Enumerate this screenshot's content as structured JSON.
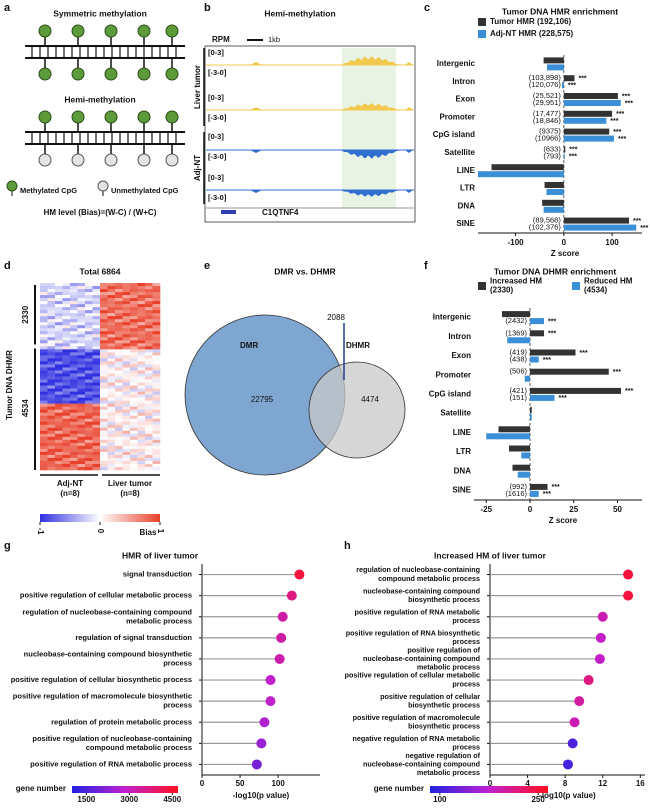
{
  "panel_labels": [
    "a",
    "b",
    "c",
    "d",
    "e",
    "f",
    "g",
    "h"
  ],
  "a": {
    "title_top": "Symmetric methylation",
    "title_bottom": "Hemi-methylation",
    "legend": [
      "Methylated CpG",
      "Unmethylated CpG"
    ],
    "formula": "HM level (Bias)=(W-C) / (W+C)"
  },
  "b": {
    "title": "Hemi-methylation",
    "unit": "RPM",
    "scale": "1kb",
    "groups": [
      "Liver tumor",
      "Adj-NT"
    ],
    "track_ranges": [
      "[0-3]",
      "[-3-0]",
      "[0-3]",
      "[-3-0]",
      "[0-3]",
      "[-3-0]",
      "[0-3]",
      "[-3-0]"
    ],
    "gene": "C1QTNF4"
  },
  "d": {
    "title": "Total 6864",
    "clusters": [
      2330,
      4534
    ],
    "ylabel": "Tumor DNA DHMR",
    "groups": [
      [
        "Adj-NT",
        "(n=8)"
      ],
      [
        "Liver tumor",
        "(n=8)"
      ]
    ],
    "colorbar": {
      "label": "Bias",
      "lim": [
        -1,
        1
      ],
      "ticks": [
        -1,
        0,
        1
      ],
      "colors": [
        "#2f2fe0",
        "#ffffff",
        "#e8402a"
      ]
    }
  },
  "e": {
    "title": "DMR vs. DHMR",
    "sets": [
      "DMR",
      "DHMR"
    ],
    "only_dmr": 22795,
    "overlap": 2088,
    "only_dhmr": 4474
  },
  "chart_data": [
    {
      "type": "bar",
      "orientation": "horizontal",
      "title": "Tumor DNA HMR enrichment",
      "categories": [
        "Intergenic",
        "Intron",
        "Exon",
        "Promoter",
        "CpG island",
        "Satellite",
        "LINE",
        "LTR",
        "DNA",
        "SINE"
      ],
      "series": [
        {
          "name": "Tumor HMR (192,106)",
          "color": "#333333",
          "values": [
            -42,
            22,
            112,
            100,
            94,
            3,
            -150,
            -40,
            -45,
            135
          ],
          "annotations": [
            null,
            "(103,898)",
            "(25,521)",
            "(17,477)",
            "(9375)",
            "(633)",
            null,
            null,
            null,
            "(89,568)"
          ],
          "significance": [
            null,
            "***",
            "***",
            "***",
            "***",
            "***",
            null,
            null,
            null,
            "***"
          ]
        },
        {
          "name": "Adj-NT HMR (228,575)",
          "color": "#3a8fd6",
          "values": [
            -35,
            -4,
            118,
            88,
            104,
            2,
            -178,
            -36,
            -42,
            150
          ],
          "annotations": [
            null,
            "(120,076)",
            "(29,951)",
            "(18,846)",
            "(10966)",
            "(793)",
            null,
            null,
            null,
            "(102,376)"
          ],
          "significance": [
            null,
            "***",
            "***",
            "***",
            "***",
            "***",
            null,
            null,
            null,
            "***"
          ]
        }
      ],
      "xlabel": "Z score",
      "xlim": [
        -178,
        162
      ],
      "xticks": [
        -100,
        0,
        100
      ]
    },
    {
      "type": "bar",
      "orientation": "horizontal",
      "title": "Tumor DNA DHMR enrichment",
      "categories": [
        "Intergenic",
        "Intron",
        "Exon",
        "Promoter",
        "CpG island",
        "Satellite",
        "LINE",
        "LTR",
        "DNA",
        "SINE"
      ],
      "series": [
        {
          "name": "Increased HM (2330)",
          "color": "#333333",
          "values": [
            -16,
            8,
            26,
            45,
            52,
            1,
            -18,
            -12,
            -10,
            10
          ],
          "annotations": [
            null,
            "(1369)",
            "(419)",
            "(506)",
            "(421)",
            null,
            null,
            null,
            null,
            "(992)"
          ],
          "significance": [
            null,
            "***",
            "***",
            "***",
            "***",
            null,
            null,
            null,
            null,
            "***"
          ]
        },
        {
          "name": "Reduced HM (4534)",
          "color": "#3a8fd6",
          "values": [
            8,
            -13,
            5,
            -3,
            14,
            1,
            -25,
            -5,
            -7,
            5
          ],
          "annotations": [
            "(2432)",
            null,
            "(438)",
            null,
            "(151)",
            null,
            null,
            null,
            null,
            "(1616)"
          ],
          "significance": [
            "***",
            null,
            "***",
            null,
            "***",
            null,
            null,
            null,
            null,
            "***"
          ]
        }
      ],
      "xlabel": "Z score",
      "xlim": [
        -32,
        64
      ],
      "xticks": [
        -25,
        0,
        25,
        50
      ]
    },
    {
      "type": "lollipop",
      "title": "HMR of liver tumor",
      "categories": [
        "signal transduction",
        "positive regulation of cellular metabolic process",
        "regulation of nucleobase-containing compound metabolic process",
        "regulation of signal transduction",
        "nucleobase-containing compound biosynthetic process",
        "positive regulation of cellular biosynthetic process",
        "positive regulation of macromolecule biosynthetic process",
        "regulation of protein metabolic process",
        "positive regulation of nucleobase-containing compound metabolic process",
        "positive regulation of RNA metabolic process"
      ],
      "values": [
        128,
        118,
        106,
        104,
        102,
        90,
        90,
        82,
        78,
        72
      ],
      "gene_number": [
        4400,
        3700,
        3300,
        3300,
        3200,
        2900,
        2900,
        2700,
        2400,
        2000
      ],
      "xlabel": "-log10(p value)",
      "xlim": [
        0,
        155
      ],
      "xticks": [
        0,
        50,
        100
      ],
      "colorbar": {
        "label": "gene number",
        "lim": [
          1000,
          4700
        ],
        "ticks": [
          1500,
          3000,
          4500
        ],
        "colors": [
          "#2222e0",
          "#c020d0",
          "#ff1020"
        ]
      }
    },
    {
      "type": "lollipop",
      "title": "Increased HM of liver tumor",
      "categories": [
        "regulation of nucleobase-containing compound metabolic process",
        "nucleobase-containing compound biosynthetic process",
        "positive regulation of RNA metabolic process",
        "positive regulation of RNA biosynthetic process",
        "positive regulation of nucleobase-containing compound metabolic process",
        "positive regulation of cellular metabolic process",
        "positive regulation of cellular biosynthetic process",
        "positive regulation of macromolecule biosynthetic process",
        "negative regulation of RNA metabolic process",
        "negative regulation of nucleobase-containing compound metabolic process"
      ],
      "values": [
        14.7,
        14.7,
        12,
        11.8,
        11.7,
        10.5,
        9.5,
        9,
        8.8,
        8.3
      ],
      "gene_number": [
        250,
        250,
        190,
        180,
        180,
        215,
        200,
        190,
        110,
        105
      ],
      "xlabel": "-log10(p value)",
      "xlim": [
        0,
        16.5
      ],
      "xticks": [
        0,
        4,
        8,
        12,
        16
      ],
      "colorbar": {
        "label": "gene number",
        "lim": [
          85,
          265
        ],
        "ticks": [
          100,
          250
        ],
        "colors": [
          "#2222e0",
          "#c020d0",
          "#ff1020"
        ]
      }
    }
  ]
}
